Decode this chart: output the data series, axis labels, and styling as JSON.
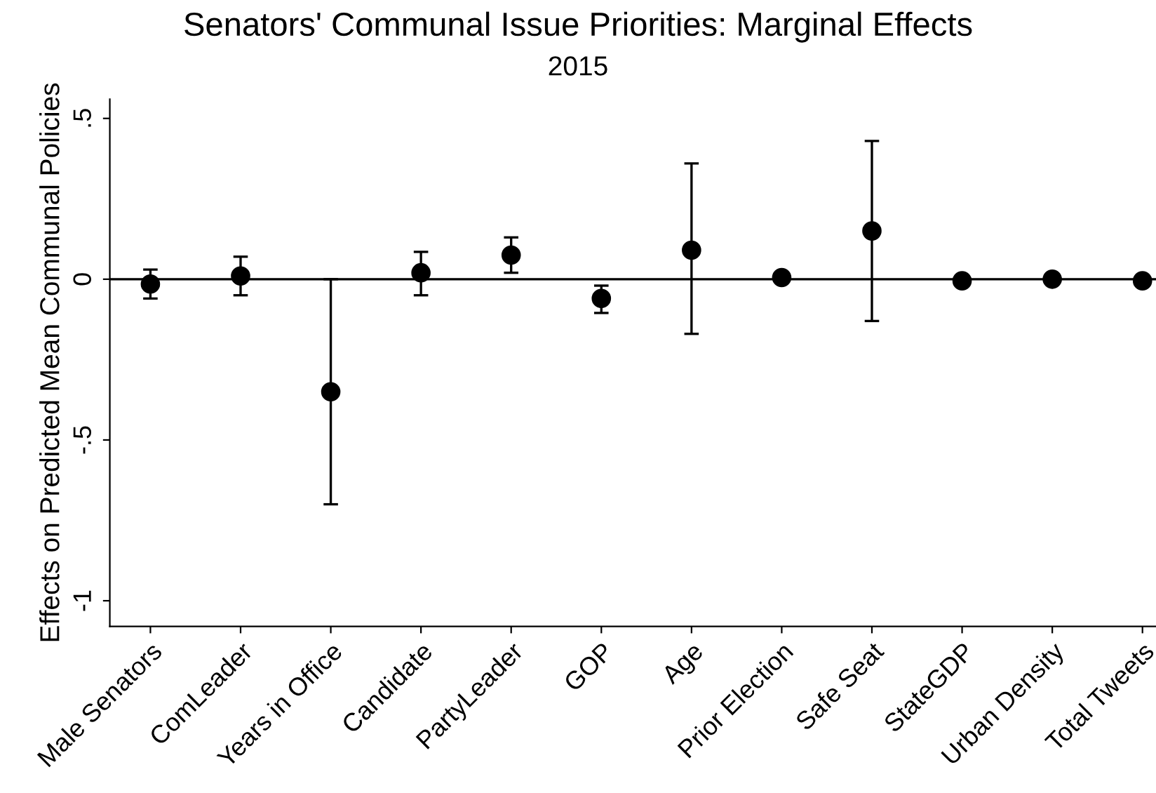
{
  "chart_data": {
    "type": "scatter",
    "title": "Senators' Communal Issue Priorities: Marginal Effects",
    "subtitle": "2015",
    "ylabel": "Effects on Predicted Mean Communal Policies",
    "categories": [
      "Male Senators",
      "ComLeader",
      "Years in Office",
      "Candidate",
      "PartyLeader",
      "GOP",
      "Age",
      "Prior Election",
      "Safe Seat",
      "StateGDP",
      "Urban Density",
      "Total Tweets"
    ],
    "series": [
      {
        "color": "#000000",
        "values": [
          -0.015,
          0.01,
          -0.35,
          0.02,
          0.075,
          -0.06,
          0.09,
          0.005,
          0.15,
          -0.005,
          0.0,
          -0.005
        ],
        "errors": [
          [
            -0.06,
            0.03
          ],
          [
            -0.05,
            0.07
          ],
          [
            -0.7,
            0.0
          ],
          [
            -0.05,
            0.085
          ],
          [
            0.02,
            0.13
          ],
          [
            -0.105,
            -0.02
          ],
          [
            -0.17,
            0.36
          ],
          null,
          [
            -0.13,
            0.43
          ],
          null,
          null,
          null
        ]
      }
    ],
    "ylim": [
      -1.08,
      0.56
    ],
    "yticks": [
      {
        "value": 0.5,
        "label": ".5"
      },
      {
        "value": 0,
        "label": "0"
      },
      {
        "value": -0.5,
        "label": "-.5"
      },
      {
        "value": -1,
        "label": "-1"
      }
    ],
    "ref_lines": [
      {
        "axis": "y",
        "value": 0,
        "color": "#000000"
      }
    ],
    "marker": "circle",
    "grid": false,
    "legend": false
  }
}
